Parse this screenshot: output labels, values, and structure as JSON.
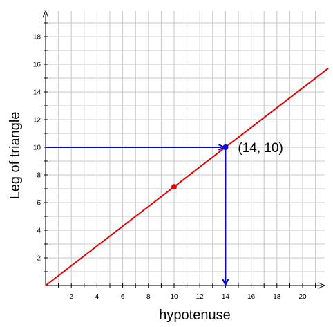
{
  "chart_data": {
    "type": "line",
    "xlabel": "hypotenuse",
    "ylabel": "Leg of triangle",
    "xlim": [
      0,
      22
    ],
    "ylim": [
      0,
      20
    ],
    "x_ticks": [
      2,
      4,
      6,
      8,
      10,
      12,
      14,
      16,
      18,
      20
    ],
    "y_ticks": [
      2,
      4,
      6,
      8,
      10,
      12,
      14,
      16,
      18
    ],
    "grid": true,
    "series": [
      {
        "x": [
          0,
          22
        ],
        "y": [
          0,
          15.714
        ],
        "color": "#e00000"
      }
    ],
    "points": [
      {
        "x": 10,
        "y": 7.14,
        "color": "#e00000"
      },
      {
        "x": 14,
        "y": 10,
        "color": "#0000e0"
      }
    ],
    "guide_lines": {
      "color": "#0000e0",
      "x": 14,
      "y": 10
    },
    "annotation": {
      "text": "(14, 10)",
      "x": 14,
      "y": 10
    }
  }
}
